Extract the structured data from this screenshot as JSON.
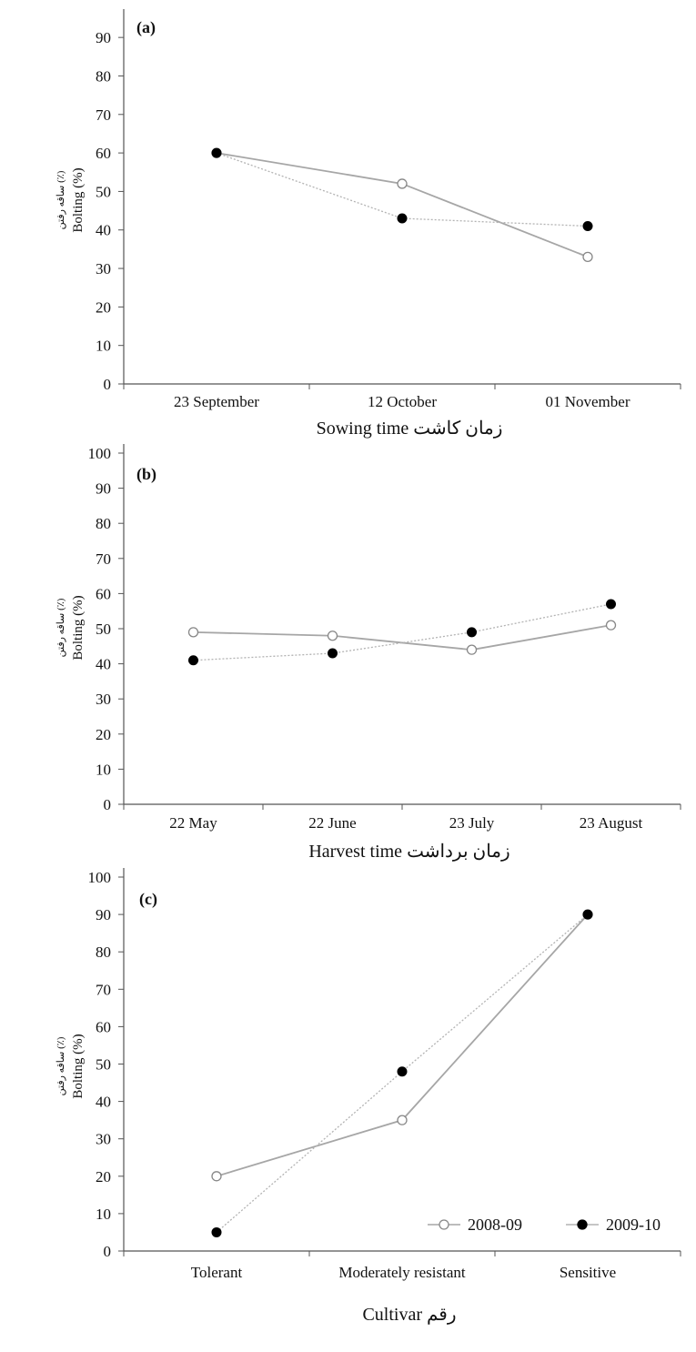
{
  "figure": {
    "panels": [
      {
        "panel_label": "(a)",
        "ylabel": "Bolting (%)",
        "ylabel_fa": "ساقه رفتن (٪)",
        "xlabel": "Sowing time زمان کاشت"
      },
      {
        "panel_label": "(b)",
        "ylabel": "Bolting (%)",
        "ylabel_fa": "ساقه رفتن (٪)",
        "xlabel": "Harvest time زمان برداشت"
      },
      {
        "panel_label": "(c)",
        "ylabel": "Bolting (%)",
        "ylabel_fa": "ساقه رفتن (٪)",
        "xlabel": "Cultivar رقم"
      }
    ],
    "legend": {
      "placement": "bottom-right of panel (c)",
      "items": [
        "2008-09",
        "2009-10"
      ]
    },
    "colors": {
      "series_2008_09_line": "#a6a6a6",
      "series_2008_09_marker_fill": "#ffffff",
      "series_2009_10_line": "#b3b3b3",
      "series_2009_10_marker_fill": "#000000",
      "axis": "#555555"
    }
  },
  "chart_data": [
    {
      "type": "line",
      "panel": "(a)",
      "categories": [
        "23 September",
        "12 October",
        "01 November"
      ],
      "series": [
        {
          "name": "2008-09",
          "values": [
            60,
            52,
            33
          ],
          "marker": "open-circle",
          "line": "solid"
        },
        {
          "name": "2009-10",
          "values": [
            60,
            43,
            41
          ],
          "marker": "filled-circle",
          "line": "dotted"
        }
      ],
      "yticks": [
        0,
        10,
        20,
        30,
        40,
        50,
        60,
        70,
        80,
        90
      ],
      "ylim": [
        0,
        95
      ],
      "ylabel": "Bolting (%)",
      "xlabel": "Sowing time زمان کاشت",
      "grid": false
    },
    {
      "type": "line",
      "panel": "(b)",
      "categories": [
        "22 May",
        "22 June",
        "23 July",
        "23 August"
      ],
      "series": [
        {
          "name": "2008-09",
          "values": [
            49,
            48,
            44,
            51
          ],
          "marker": "open-circle",
          "line": "solid"
        },
        {
          "name": "2009-10",
          "values": [
            41,
            43,
            49,
            57
          ],
          "marker": "filled-circle",
          "line": "dotted"
        }
      ],
      "yticks": [
        0,
        10,
        20,
        30,
        40,
        50,
        60,
        70,
        80,
        90,
        100
      ],
      "ylim": [
        0,
        100
      ],
      "ylabel": "Bolting (%)",
      "xlabel": "Harvest time زمان برداشت",
      "grid": false
    },
    {
      "type": "line",
      "panel": "(c)",
      "categories": [
        "Tolerant",
        "Moderately resistant",
        "Sensitive"
      ],
      "series": [
        {
          "name": "2008-09",
          "values": [
            20,
            35,
            90
          ],
          "marker": "open-circle",
          "line": "solid"
        },
        {
          "name": "2009-10",
          "values": [
            5,
            48,
            90
          ],
          "marker": "filled-circle",
          "line": "dotted"
        }
      ],
      "yticks": [
        0,
        10,
        20,
        30,
        40,
        50,
        60,
        70,
        80,
        90,
        100
      ],
      "ylim": [
        0,
        100
      ],
      "ylabel": "Bolting (%)",
      "xlabel": "Cultivar رقم",
      "grid": false
    }
  ]
}
